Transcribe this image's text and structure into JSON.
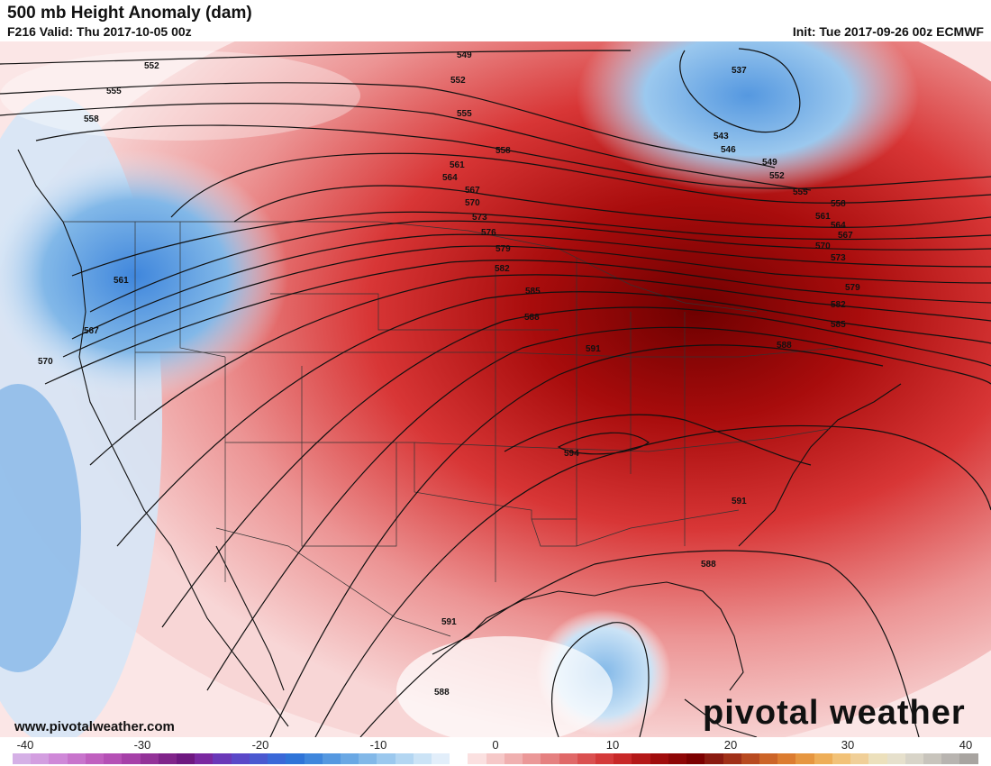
{
  "header": {
    "title": "500 mb Height Anomaly (dam)",
    "subtitle": "F216 Valid: Thu 2017-10-05 00z",
    "init": "Init: Tue 2017-09-26 00z ECMWF"
  },
  "footer": {
    "website": "www.pivotalweather.com",
    "brand": "pivotal weather"
  },
  "colorbar": {
    "ticks": [
      "-40",
      "-30",
      "-20",
      "-10",
      "0",
      "10",
      "20",
      "30",
      "40"
    ],
    "colors": [
      "#d5b0e6",
      "#d39ee0",
      "#cf88d8",
      "#c874cc",
      "#c060bf",
      "#b550b5",
      "#a640a8",
      "#933298",
      "#80248a",
      "#6e1880",
      "#7a28a0",
      "#6a38b8",
      "#5a48c8",
      "#4a58d0",
      "#3a68d8",
      "#2f74d8",
      "#3f86dc",
      "#5598e0",
      "#6aa8e4",
      "#82b8e8",
      "#9bc8ee",
      "#b3d6f2",
      "#cbe3f6",
      "#e2eefa",
      "#ffffff",
      "#fbe0e0",
      "#f6c8c8",
      "#f0b0b0",
      "#eb9898",
      "#e58080",
      "#e06868",
      "#da5050",
      "#d43a3a",
      "#c82828",
      "#b41818",
      "#a00c0c",
      "#8e0606",
      "#7c0000",
      "#8a1a10",
      "#a03018",
      "#b84a20",
      "#cc6428",
      "#dc7c30",
      "#e69640",
      "#eeae58",
      "#f2c278",
      "#f0cf98",
      "#ece0bc",
      "#e6e0cc",
      "#d8d4c8",
      "#c8c4bc",
      "#b8b4b0",
      "#a8a4a0"
    ]
  },
  "map_labels": {
    "contours": [
      "537",
      "543",
      "546",
      "549",
      "552",
      "555",
      "558",
      "561",
      "564",
      "567",
      "570",
      "573",
      "576",
      "579",
      "582",
      "585",
      "588",
      "591",
      "594"
    ],
    "contour_marks": [
      {
        "t": "552"
      },
      {
        "t": "555"
      },
      {
        "t": "558"
      },
      {
        "t": "561"
      },
      {
        "t": "567"
      },
      {
        "t": "570"
      },
      {
        "t": "549"
      },
      {
        "t": "552"
      },
      {
        "t": "555"
      },
      {
        "t": "558"
      },
      {
        "t": "561"
      },
      {
        "t": "564"
      },
      {
        "t": "567"
      },
      {
        "t": "570"
      },
      {
        "t": "573"
      },
      {
        "t": "576"
      },
      {
        "t": "579"
      },
      {
        "t": "582"
      },
      {
        "t": "585"
      },
      {
        "t": "588"
      },
      {
        "t": "591"
      },
      {
        "t": "594"
      },
      {
        "t": "591"
      },
      {
        "t": "588"
      },
      {
        "t": "591"
      },
      {
        "t": "588"
      },
      {
        "t": "537"
      },
      {
        "t": "543"
      },
      {
        "t": "546"
      },
      {
        "t": "549"
      },
      {
        "t": "552"
      },
      {
        "t": "555"
      },
      {
        "t": "558"
      },
      {
        "t": "561"
      },
      {
        "t": "564"
      },
      {
        "t": "567"
      },
      {
        "t": "570"
      },
      {
        "t": "573"
      },
      {
        "t": "579"
      },
      {
        "t": "582"
      },
      {
        "t": "585"
      },
      {
        "t": "588"
      }
    ]
  }
}
